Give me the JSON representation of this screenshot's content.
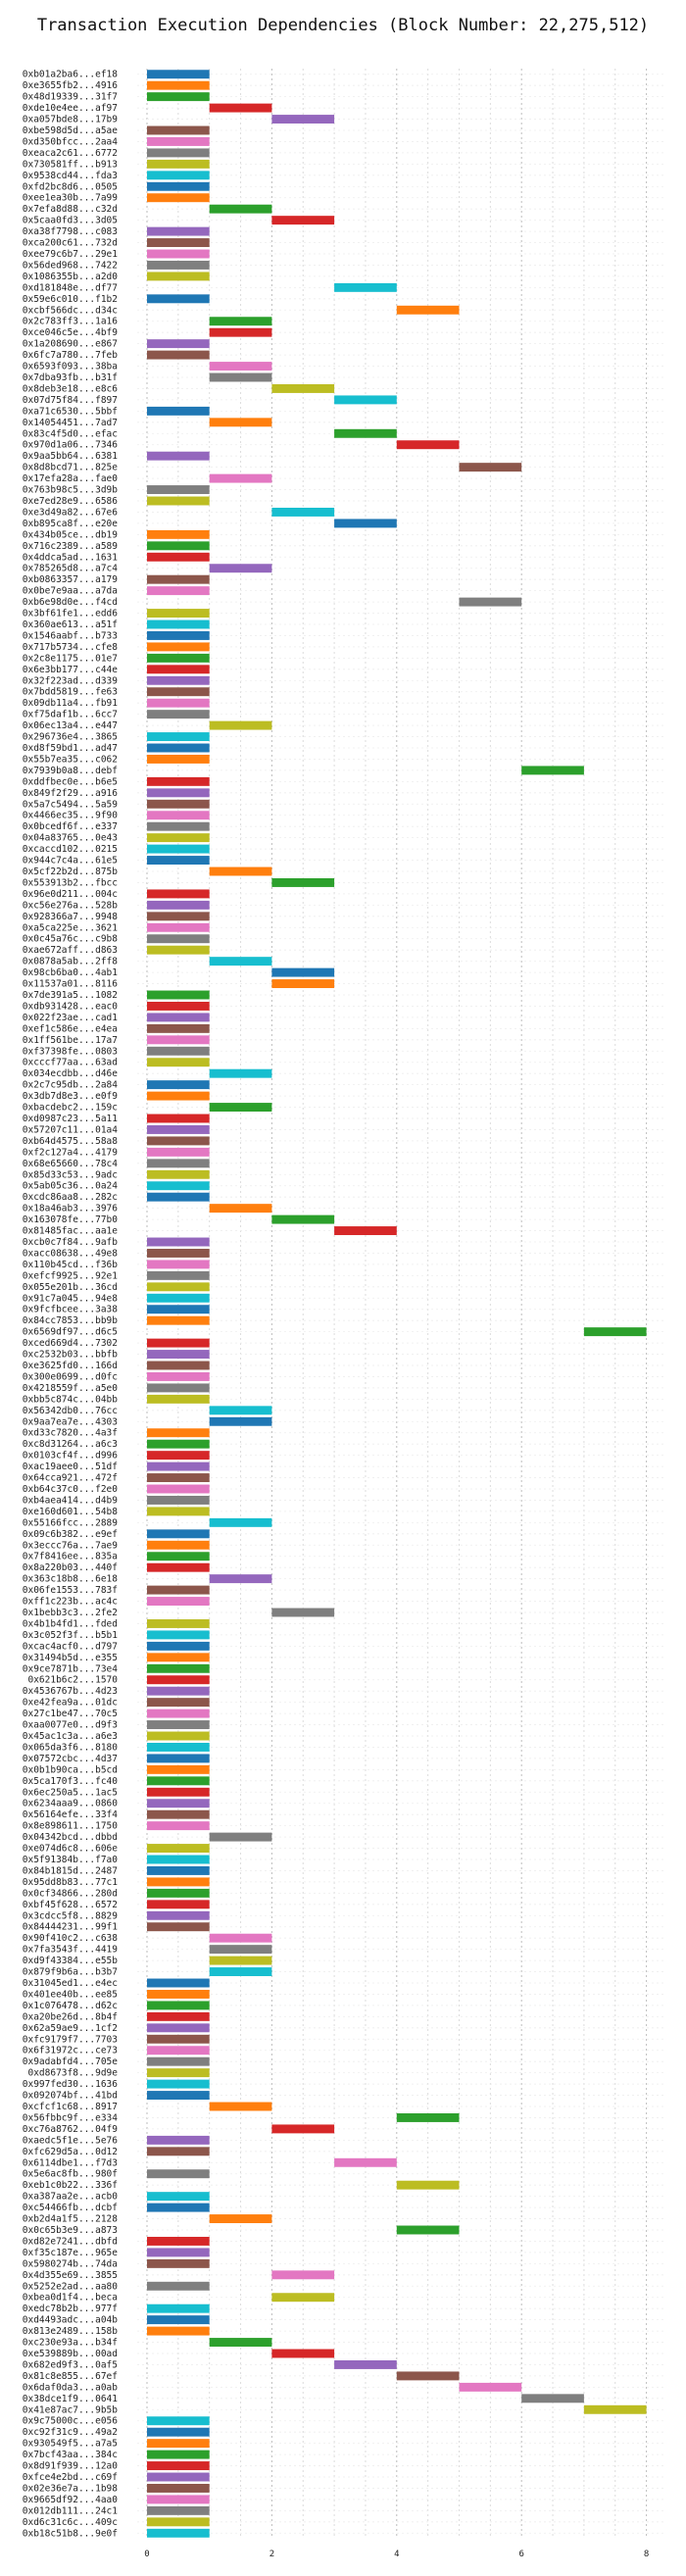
{
  "chart_data": {
    "type": "bar",
    "title": "Transaction Execution Dependencies (Block Number: 22,275,512)",
    "xlabel": "",
    "ylabel": "",
    "xlim": [
      -0.2,
      8.5
    ],
    "xticks": [
      0,
      2,
      4,
      6,
      8
    ],
    "grid": "vertical-dotted",
    "palette": [
      "#1f77b4",
      "#ff7f0e",
      "#2ca02c",
      "#d62728",
      "#9467bd",
      "#8c564b",
      "#e377c2",
      "#7f7f7f",
      "#bcbd22",
      "#17becf"
    ],
    "transactions": [
      [
        "0xb01a2ba6...ef18",
        0
      ],
      [
        "0xe3655fb2...4916",
        0
      ],
      [
        "0x48d19339...31f7",
        0
      ],
      [
        "0xde10e4ee...af97",
        1
      ],
      [
        "0xa057bde8...17b9",
        2
      ],
      [
        "0xbe598d5d...a5ae",
        0
      ],
      [
        "0xd350bfcc...2aa4",
        0
      ],
      [
        "0xeaca2c61...6772",
        0
      ],
      [
        "0x730581ff...b913",
        0
      ],
      [
        "0x9538cd44...fda3",
        0
      ],
      [
        "0xfd2bc8d6...0505",
        0
      ],
      [
        "0xee1ea30b...7a99",
        0
      ],
      [
        "0x7efa8d88...c32d",
        1
      ],
      [
        "0x5caa0fd3...3d05",
        2
      ],
      [
        "0xa38f7798...c083",
        0
      ],
      [
        "0xca200c61...732d",
        0
      ],
      [
        "0xee79c6b7...29e1",
        0
      ],
      [
        "0x56ded968...7422",
        0
      ],
      [
        "0x1086355b...a2d0",
        0
      ],
      [
        "0xd181848e...df77",
        3
      ],
      [
        "0x59e6c010...f1b2",
        0
      ],
      [
        "0xcbf566dc...d34c",
        4
      ],
      [
        "0x2c783ff3...1a16",
        1
      ],
      [
        "0xce046c5e...4bf9",
        1
      ],
      [
        "0x1a208690...e867",
        0
      ],
      [
        "0x6fc7a780...7feb",
        0
      ],
      [
        "0x6593f093...38ba",
        1
      ],
      [
        "0x7dba93fb...b31f",
        1
      ],
      [
        "0x8deb3e18...e8c6",
        2
      ],
      [
        "0x07d75f84...f897",
        3
      ],
      [
        "0xa71c6530...5bbf",
        0
      ],
      [
        "0x14054451...7ad7",
        1
      ],
      [
        "0x83c4f5d0...efac",
        3
      ],
      [
        "0x970d1a06...7346",
        4
      ],
      [
        "0x9aa5bb64...6381",
        0
      ],
      [
        "0x8d8bcd71...825e",
        5
      ],
      [
        "0x17efa28a...fae0",
        1
      ],
      [
        "0x763b98c5...3d9b",
        0
      ],
      [
        "0xe7ed28e9...6586",
        0
      ],
      [
        "0xe3d49a82...67e6",
        2
      ],
      [
        "0xb895ca8f...e20e",
        3
      ],
      [
        "0x434b05ce...db19",
        0
      ],
      [
        "0x716c2389...a589",
        0
      ],
      [
        "0x4ddca5ad...1631",
        0
      ],
      [
        "0x785265d8...a7c4",
        1
      ],
      [
        "0xb0863357...a179",
        0
      ],
      [
        "0x0be7e9aa...a7da",
        0
      ],
      [
        "0xb6e98d0e...f4cd",
        5
      ],
      [
        "0x3bf61fe1...edd6",
        0
      ],
      [
        "0x360ae613...a51f",
        0
      ],
      [
        "0x1546aabf...b733",
        0
      ],
      [
        "0x717b5734...cfe8",
        0
      ],
      [
        "0x2c8e1175...01e7",
        0
      ],
      [
        "0x6e3bb177...c44e",
        0
      ],
      [
        "0x32f223ad...d339",
        0
      ],
      [
        "0x7bdd5819...fe63",
        0
      ],
      [
        "0x09db11a4...fb91",
        0
      ],
      [
        "0xf75daf1b...6cc7",
        0
      ],
      [
        "0x06ec13a4...e447",
        1
      ],
      [
        "0x296736e4...3865",
        0
      ],
      [
        "0xd8f59bd1...ad47",
        0
      ],
      [
        "0x55b7ea35...c062",
        0
      ],
      [
        "0x7939b0a8...debf",
        6
      ],
      [
        "0xddfbec0e...b6e5",
        0
      ],
      [
        "0x849f2f29...a916",
        0
      ],
      [
        "0x5a7c5494...5a59",
        0
      ],
      [
        "0x4466ec35...9f90",
        0
      ],
      [
        "0x0bcedf6f...e337",
        0
      ],
      [
        "0x04a83765...0e43",
        0
      ],
      [
        "0xcaccd102...0215",
        0
      ],
      [
        "0x944c7c4a...61e5",
        0
      ],
      [
        "0x5cf22b2d...875b",
        1
      ],
      [
        "0x553913b2...fbcc",
        2
      ],
      [
        "0x96e0d211...004c",
        0
      ],
      [
        "0xc56e276a...528b",
        0
      ],
      [
        "0x928366a7...9948",
        0
      ],
      [
        "0xa5ca225e...3621",
        0
      ],
      [
        "0x0c45a76c...c9b8",
        0
      ],
      [
        "0xae672aff...d863",
        0
      ],
      [
        "0x0878a5ab...2ff8",
        1
      ],
      [
        "0x98cb6ba0...4ab1",
        2
      ],
      [
        "0x11537a01...8116",
        2
      ],
      [
        "0x7de391a5...1082",
        0
      ],
      [
        "0xdb931428...eac0",
        0
      ],
      [
        "0x022f23ae...cad1",
        0
      ],
      [
        "0xef1c586e...e4ea",
        0
      ],
      [
        "0x1ff561be...17a7",
        0
      ],
      [
        "0xf37398fe...0803",
        0
      ],
      [
        "0xcccf77aa...63ad",
        0
      ],
      [
        "0x034ecdbb...d46e",
        1
      ],
      [
        "0x2c7c95db...2a84",
        0
      ],
      [
        "0x3db7d8e3...e0f9",
        0
      ],
      [
        "0xbacdebc2...159c",
        1
      ],
      [
        "0xd0987c23...5a11",
        0
      ],
      [
        "0x57207c11...01a4",
        0
      ],
      [
        "0xb64d4575...58a8",
        0
      ],
      [
        "0xf2c127a4...4179",
        0
      ],
      [
        "0x68e65660...78c4",
        0
      ],
      [
        "0x85d33c53...9adc",
        0
      ],
      [
        "0x5ab05c36...0a24",
        0
      ],
      [
        "0xcdc86aa8...282c",
        0
      ],
      [
        "0x18a46ab3...3976",
        1
      ],
      [
        "0x163078fe...77b0",
        2
      ],
      [
        "0x81485fac...aa1e",
        3
      ],
      [
        "0xcb0c7f84...9afb",
        0
      ],
      [
        "0xacc08638...49e8",
        0
      ],
      [
        "0x110b45cd...f36b",
        0
      ],
      [
        "0xefcf9925...92e1",
        0
      ],
      [
        "0x055e201b...36cd",
        0
      ],
      [
        "0x91c7a045...94e8",
        0
      ],
      [
        "0x9fcfbcee...3a38",
        0
      ],
      [
        "0x84cc7853...bb9b",
        0
      ],
      [
        "0x6569df97...d6c5",
        7
      ],
      [
        "0xced669d4...7302",
        0
      ],
      [
        "0xc2532b03...bbfb",
        0
      ],
      [
        "0xe3625fd0...166d",
        0
      ],
      [
        "0x300e0699...d0fc",
        0
      ],
      [
        "0x4218559f...a5e0",
        0
      ],
      [
        "0xbb5c874c...04bb",
        0
      ],
      [
        "0x56342db0...76cc",
        1
      ],
      [
        "0x9aa7ea7e...4303",
        1
      ],
      [
        "0xd33c7820...4a3f",
        0
      ],
      [
        "0xc8d31264...a6c3",
        0
      ],
      [
        "0x0103cf4f...d996",
        0
      ],
      [
        "0xac19aee0...51df",
        0
      ],
      [
        "0x64cca921...472f",
        0
      ],
      [
        "0xb64c37c0...f2e0",
        0
      ],
      [
        "0xb4aea414...d4b9",
        0
      ],
      [
        "0xe160d601...54b8",
        0
      ],
      [
        "0x55166fcc...2889",
        1
      ],
      [
        "0x09c6b382...e9ef",
        0
      ],
      [
        "0x3eccc76a...7ae9",
        0
      ],
      [
        "0x7f8416ee...835a",
        0
      ],
      [
        "0x8a220b03...440f",
        0
      ],
      [
        "0x363c18b8...6e18",
        1
      ],
      [
        "0x06fe1553...783f",
        0
      ],
      [
        "0xff1c223b...ac4c",
        0
      ],
      [
        "0x1bebb3c3...2fe2",
        2
      ],
      [
        "0x4b1b4fd1...fded",
        0
      ],
      [
        "0x3c052f3f...b5b1",
        0
      ],
      [
        "0xcac4acf0...d797",
        0
      ],
      [
        "0x31494b5d...e355",
        0
      ],
      [
        "0x9ce7871b...73e4",
        0
      ],
      [
        "0x621b6c2...1570",
        0
      ],
      [
        "0x4536767b...4d23",
        0
      ],
      [
        "0xe42fea9a...01dc",
        0
      ],
      [
        "0x27c1be47...70c5",
        0
      ],
      [
        "0xaa0077e0...d9f3",
        0
      ],
      [
        "0x45ac1c3a...a6e3",
        0
      ],
      [
        "0x065da3f6...8180",
        0
      ],
      [
        "0x07572cbc...4d37",
        0
      ],
      [
        "0x0b1b90ca...b5cd",
        0
      ],
      [
        "0x5ca170f3...fc40",
        0
      ],
      [
        "0x6ec250a5...1ac5",
        0
      ],
      [
        "0x6234aaa9...0860",
        0
      ],
      [
        "0x56164efe...33f4",
        0
      ],
      [
        "0x8e898611...1750",
        0
      ],
      [
        "0x04342bcd...dbbd",
        1
      ],
      [
        "0xe074d6c8...606e",
        0
      ],
      [
        "0x5f91384b...f7a0",
        0
      ],
      [
        "0x84b1815d...2487",
        0
      ],
      [
        "0x95dd8b83...77c1",
        0
      ],
      [
        "0x0cf34866...280d",
        0
      ],
      [
        "0xbf45f628...6572",
        0
      ],
      [
        "0x3cdcc5f8...8829",
        0
      ],
      [
        "0x84444231...99f1",
        0
      ],
      [
        "0x90f410c2...c638",
        1
      ],
      [
        "0x7fa3543f...4419",
        1
      ],
      [
        "0xd9f43384...e55b",
        1
      ],
      [
        "0x879f9b6a...b3b7",
        1
      ],
      [
        "0x31045ed1...e4ec",
        0
      ],
      [
        "0x401ee40b...ee85",
        0
      ],
      [
        "0x1c076478...d62c",
        0
      ],
      [
        "0xa20be26d...8b4f",
        0
      ],
      [
        "0x62a59ae9...1cf2",
        0
      ],
      [
        "0xfc9179f7...7703",
        0
      ],
      [
        "0x6f31972c...ce73",
        0
      ],
      [
        "0x9adabfd4...705e",
        0
      ],
      [
        "0xd8673f8...9d9e",
        0
      ],
      [
        "0x997fed30...1636",
        0
      ],
      [
        "0x092074bf...41bd",
        0
      ],
      [
        "0xcfcf1c68...8917",
        1
      ],
      [
        "0x56fbbc9f...e334",
        4
      ],
      [
        "0xc76a8762...04f9",
        2
      ],
      [
        "0xaedc5f1e...5e76",
        0
      ],
      [
        "0xfc629d5a...0d12",
        0
      ],
      [
        "0x6114dbe1...f7d3",
        3
      ],
      [
        "0x5e6ac8fb...980f",
        0
      ],
      [
        "0xeb1c0b22...336f",
        4
      ],
      [
        "0xa387aa2e...acb0",
        0
      ],
      [
        "0xc54466fb...dcbf",
        0
      ],
      [
        "0xb2d4a1f5...2128",
        1
      ],
      [
        "0x0c65b3e9...a873",
        4
      ],
      [
        "0xd82e7241...dbfd",
        0
      ],
      [
        "0xf35c187e...965e",
        0
      ],
      [
        "0x5980274b...74da",
        0
      ],
      [
        "0x4d355e69...3855",
        2
      ],
      [
        "0x5252e2ad...aa80",
        0
      ],
      [
        "0xbea0d1f4...beca",
        2
      ],
      [
        "0xedc78b2b...977f",
        0
      ],
      [
        "0xd4493adc...a04b",
        0
      ],
      [
        "0x813e2489...158b",
        0
      ],
      [
        "0xc230e93a...b34f",
        1
      ],
      [
        "0xe539889b...00ad",
        2
      ],
      [
        "0x682ed9f3...0af5",
        3
      ],
      [
        "0x81c8e855...67ef",
        4
      ],
      [
        "0x6daf0da3...a0ab",
        5
      ],
      [
        "0x38dce1f9...0641",
        6
      ],
      [
        "0x41e87ac7...9b5b",
        7
      ],
      [
        "0x9c75000c...e056",
        0
      ],
      [
        "0xc92f31c9...49a2",
        0
      ],
      [
        "0x930549f5...a7a5",
        0
      ],
      [
        "0x7bcf43aa...384c",
        0
      ],
      [
        "0x8d91f939...12a0",
        0
      ],
      [
        "0xfce4e2bd...c69f",
        0
      ],
      [
        "0x02e36e7a...1b98",
        0
      ],
      [
        "0x9665df92...4aa0",
        0
      ],
      [
        "0x012db111...24c1",
        0
      ],
      [
        "0xd6c31c6c...409c",
        0
      ],
      [
        "0xb18c51b8...9e0f",
        0
      ]
    ]
  }
}
